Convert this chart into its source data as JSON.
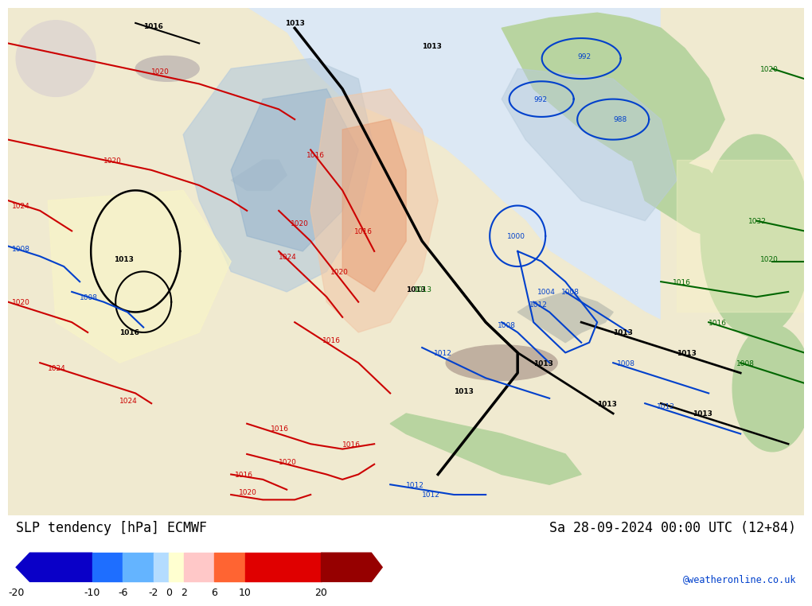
{
  "title_left": "SLP tendency [hPa] ECMWF",
  "title_right": "Sa 28-09-2024 00:00 UTC (12+84)",
  "colorbar_ticks": [
    -20,
    -10,
    -6,
    -2,
    0,
    2,
    6,
    10,
    20
  ],
  "colorbar_boundaries": [
    -20,
    -10,
    -6,
    -2,
    0,
    2,
    6,
    10,
    20,
    28
  ],
  "colorbar_colors": [
    "#0a00c8",
    "#1e6eff",
    "#64b4ff",
    "#b4dcff",
    "#ffffd0",
    "#ffc8c8",
    "#ff6432",
    "#e00000",
    "#960000"
  ],
  "background_color": "#ffffff",
  "watermark": "@weatheronline.co.uk",
  "fig_width": 10.0,
  "fig_height": 7.33
}
